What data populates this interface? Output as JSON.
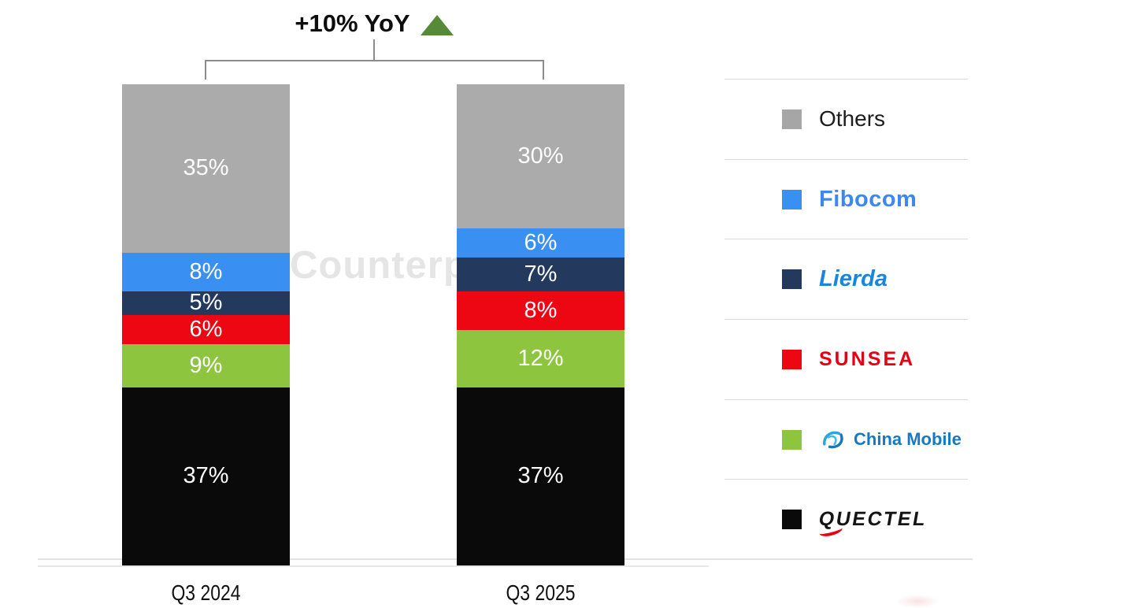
{
  "watermark": "Counterp",
  "annotation": {
    "label": "+10% YoY",
    "triangle_color": "#568a38"
  },
  "chart_data": {
    "type": "bar",
    "stacked": true,
    "title": "+10% YoY",
    "annotation": "+10% YoY",
    "categories": [
      "Q3 2024",
      "Q3 2025"
    ],
    "series": [
      {
        "name": "Others",
        "color": "#ababab",
        "values": [
          35,
          30
        ]
      },
      {
        "name": "Fibocom",
        "color": "#3a8ff2",
        "values": [
          8,
          6
        ]
      },
      {
        "name": "Lierda",
        "color": "#23395d",
        "values": [
          5,
          7
        ]
      },
      {
        "name": "SUNSEA",
        "color": "#ec0713",
        "values": [
          6,
          8
        ]
      },
      {
        "name": "China Mobile",
        "color": "#8dc63e",
        "values": [
          9,
          12
        ]
      },
      {
        "name": "Quectel",
        "color": "#0a0a0a",
        "values": [
          37,
          37
        ]
      }
    ],
    "value_suffix": "%",
    "ylim": [
      0,
      100
    ],
    "legend_position": "right",
    "grid": false
  },
  "legend": {
    "items": [
      {
        "label": "Others",
        "color": "#a6a6a6"
      },
      {
        "label": "Fibocom",
        "color": "#3a8ff2"
      },
      {
        "label": "Lierda",
        "color": "#23395d"
      },
      {
        "label": "SUNSEA",
        "color": "#ec0713"
      },
      {
        "label": "China Mobile",
        "color": "#8dc63e"
      },
      {
        "label": "QUECTEL",
        "color": "#0a0a0a"
      }
    ]
  }
}
